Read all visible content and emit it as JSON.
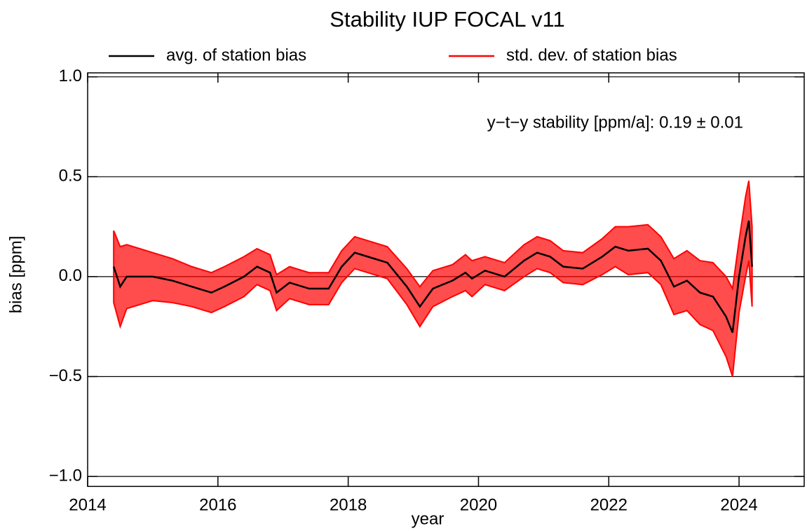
{
  "chart_data": {
    "type": "line",
    "title": "Stability IUP FOCAL v11",
    "xlabel": "year",
    "ylabel": "bias [ppm]",
    "annotation": "y−t−y stability [ppm/a]: 0.19 ± 0.01",
    "x": [
      2014.4,
      2014.5,
      2014.6,
      2014.8,
      2015.0,
      2015.3,
      2015.6,
      2015.9,
      2016.1,
      2016.4,
      2016.6,
      2016.8,
      2016.9,
      2017.1,
      2017.4,
      2017.7,
      2017.9,
      2018.1,
      2018.3,
      2018.6,
      2018.9,
      2019.1,
      2019.3,
      2019.6,
      2019.8,
      2019.9,
      2020.1,
      2020.4,
      2020.7,
      2020.9,
      2021.1,
      2021.3,
      2021.6,
      2021.9,
      2022.1,
      2022.3,
      2022.6,
      2022.8,
      2023.0,
      2023.2,
      2023.4,
      2023.6,
      2023.8,
      2023.9,
      2024.0,
      2024.1,
      2024.15,
      2024.2
    ],
    "series": [
      {
        "name": "avg. of station bias",
        "color": "#000000",
        "values": [
          0.05,
          -0.05,
          0.0,
          0.0,
          0.0,
          -0.02,
          -0.05,
          -0.08,
          -0.05,
          0.0,
          0.05,
          0.02,
          -0.08,
          -0.03,
          -0.06,
          -0.06,
          0.05,
          0.12,
          0.1,
          0.07,
          -0.05,
          -0.15,
          -0.06,
          -0.02,
          0.02,
          -0.01,
          0.03,
          0.0,
          0.08,
          0.12,
          0.1,
          0.05,
          0.04,
          0.1,
          0.15,
          0.13,
          0.14,
          0.08,
          -0.05,
          -0.02,
          -0.08,
          -0.1,
          -0.2,
          -0.28,
          0.0,
          0.2,
          0.28,
          0.05
        ]
      },
      {
        "name": "std. dev. of station bias",
        "color": "#ff0000",
        "values": [
          0.18,
          0.2,
          0.16,
          0.14,
          0.12,
          0.11,
          0.1,
          0.1,
          0.1,
          0.1,
          0.09,
          0.09,
          0.09,
          0.08,
          0.08,
          0.08,
          0.08,
          0.08,
          0.08,
          0.08,
          0.09,
          0.1,
          0.09,
          0.08,
          0.09,
          0.09,
          0.07,
          0.07,
          0.08,
          0.08,
          0.08,
          0.08,
          0.08,
          0.09,
          0.1,
          0.12,
          0.12,
          0.12,
          0.14,
          0.15,
          0.16,
          0.17,
          0.2,
          0.22,
          0.18,
          0.2,
          0.2,
          0.2
        ]
      }
    ],
    "xlim": [
      2014,
      2025
    ],
    "ylim": [
      -1.05,
      1.02
    ],
    "xticks": [
      2014,
      2016,
      2018,
      2020,
      2022,
      2024
    ],
    "yticks": [
      {
        "value": -1.0,
        "label": "−1.0"
      },
      {
        "value": -0.5,
        "label": "−0.5"
      },
      {
        "value": 0.0,
        "label": "0.0"
      },
      {
        "value": 0.5,
        "label": "0.5"
      },
      {
        "value": 1.0,
        "label": "1.0"
      }
    ],
    "grid": true,
    "band_alpha": 0.7
  }
}
